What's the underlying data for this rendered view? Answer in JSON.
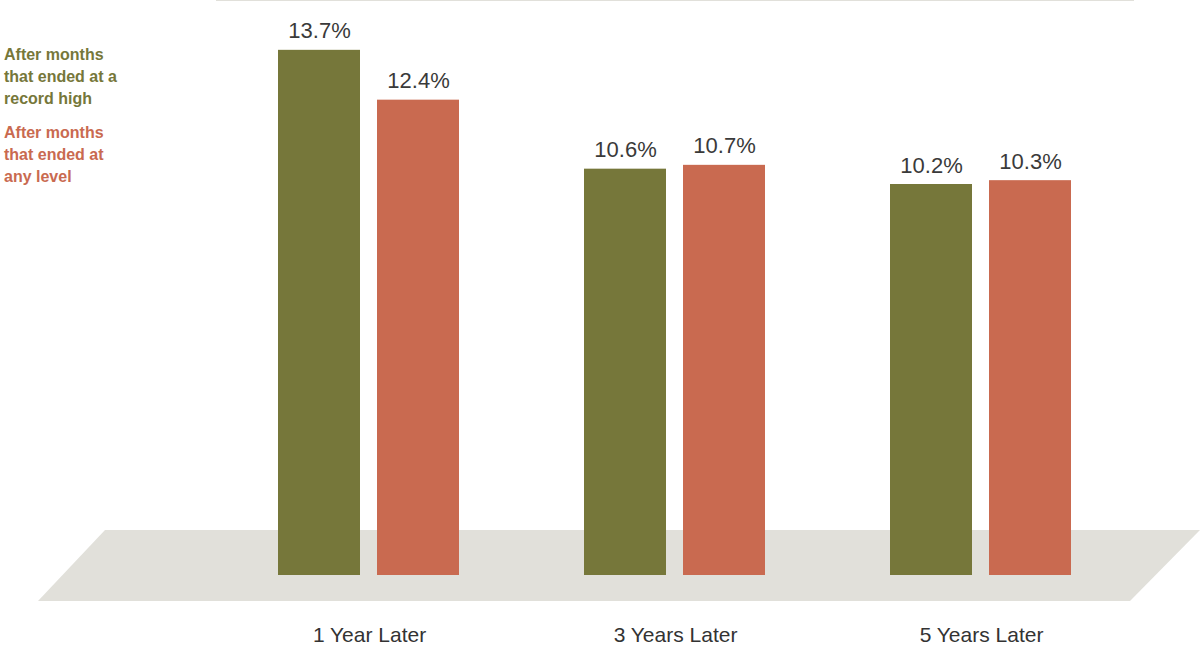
{
  "chart_data": {
    "type": "bar",
    "categories": [
      "1 Year Later",
      "3 Years Later",
      "5 Years Later"
    ],
    "series": [
      {
        "name": "After months that ended at a record high",
        "color": "#76773a",
        "values": [
          13.7,
          10.6,
          10.2
        ],
        "value_labels": [
          "13.7%",
          "10.6%",
          "10.2%"
        ]
      },
      {
        "name": "After months that ended at any level",
        "color": "#c96a50",
        "values": [
          12.4,
          10.7,
          10.3
        ],
        "value_labels": [
          "12.4%",
          "10.7%",
          "10.3%"
        ]
      }
    ],
    "ylim": [
      0,
      15
    ],
    "yticks": [],
    "data_labels": true,
    "tick_labels": "x",
    "legend": "top-left"
  }
}
